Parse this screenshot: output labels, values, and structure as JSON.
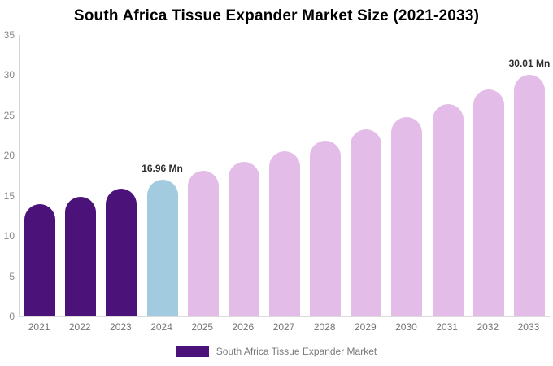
{
  "chart_data": {
    "type": "bar",
    "title": "South Africa Tissue Expander Market Size (2021-2033)",
    "unit": "Mn",
    "categories": [
      "2021",
      "2022",
      "2023",
      "2024",
      "2025",
      "2026",
      "2027",
      "2028",
      "2029",
      "2030",
      "2031",
      "2032",
      "2033"
    ],
    "values": [
      14.0,
      14.9,
      15.9,
      16.96,
      18.1,
      19.2,
      20.5,
      21.9,
      23.3,
      24.8,
      26.4,
      28.2,
      30.01
    ],
    "bar_color_keys": [
      "historical",
      "historical",
      "historical",
      "base",
      "forecast",
      "forecast",
      "forecast",
      "forecast",
      "forecast",
      "forecast",
      "forecast",
      "forecast",
      "forecast"
    ],
    "colors": {
      "historical": "#4B1279",
      "base": "#A3CBE0",
      "forecast": "#E3BCE8"
    },
    "value_labels": {
      "2024": "16.96 Mn",
      "2033": "30.01 Mn"
    },
    "ylim": [
      0,
      35
    ],
    "yticks": [
      0,
      5,
      10,
      15,
      20,
      25,
      30,
      35
    ],
    "grid": false,
    "xlabel": "",
    "ylabel": "",
    "legend": {
      "label": "South Africa Tissue Expander Market",
      "swatch_color": "#4B1279",
      "position": "bottom"
    }
  }
}
